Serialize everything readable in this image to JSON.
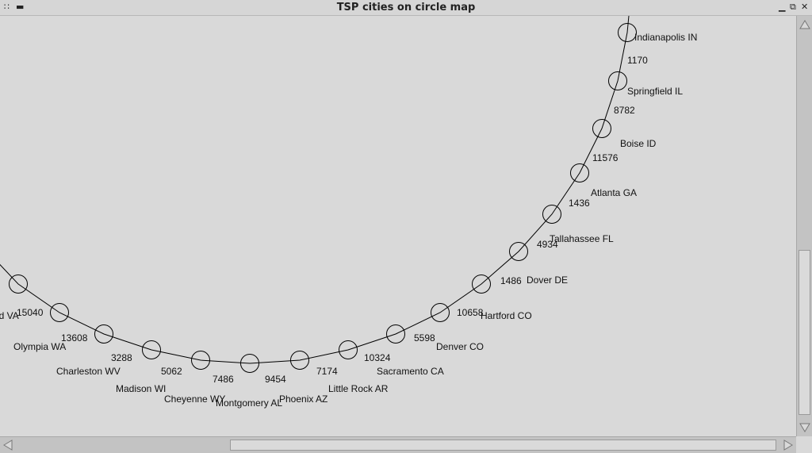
{
  "window": {
    "title": "TSP cities on circle map",
    "menu_icon": "grip-icon",
    "buttons": [
      "minimize-icon",
      "restore-icon",
      "close-icon"
    ]
  },
  "map": {
    "cities": [
      {
        "name": "nd VA"
      },
      {
        "name": "Olympia WA"
      },
      {
        "name": "Charleston WV"
      },
      {
        "name": "Madison WI"
      },
      {
        "name": "Cheyenne WY"
      },
      {
        "name": "Montgomery AL"
      },
      {
        "name": "Phoenix AZ"
      },
      {
        "name": "Little Rock AR"
      },
      {
        "name": "Sacramento CA"
      },
      {
        "name": "Denver CO"
      },
      {
        "name": "Hartford CO"
      },
      {
        "name": "Dover DE"
      },
      {
        "name": "Tallahassee FL"
      },
      {
        "name": "Atlanta GA"
      },
      {
        "name": "Boise ID"
      },
      {
        "name": "Springfield IL"
      },
      {
        "name": "Indianapolis IN"
      }
    ],
    "distances": [
      "15040",
      "13608",
      "3288",
      "5062",
      "7486",
      "9454",
      "7174",
      "10324",
      "5598",
      "10658",
      "1486",
      "4934",
      "1436",
      "11576",
      "8782",
      "1170"
    ]
  },
  "scrollbars": {
    "vertical": {
      "position": 0.56,
      "visible": 0.44
    },
    "horizontal": {
      "position": 0.28,
      "visible": 0.72
    }
  }
}
